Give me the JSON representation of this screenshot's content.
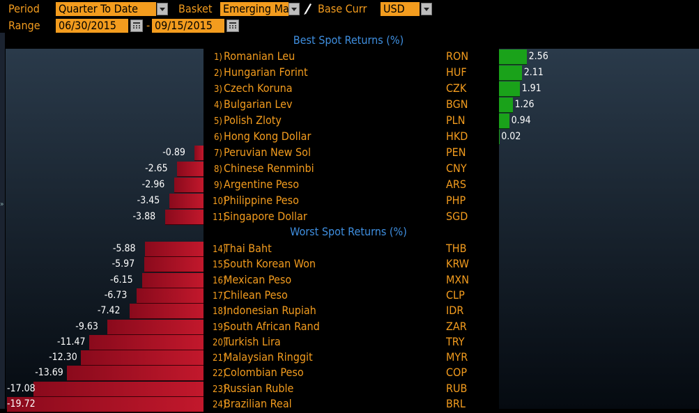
{
  "toolbar": {
    "period_label": "Period",
    "period_value": "Quarter To Date",
    "basket_label": "Basket",
    "basket_value": "Emerging Ma",
    "base_label": "Base Curr",
    "base_value": "USD",
    "range_label": "Range",
    "range_start": "06/30/2015",
    "range_sep": "-",
    "range_end": "09/15/2015"
  },
  "chart_data": {
    "type": "bar",
    "best_title": "Best Spot Returns (%)",
    "worst_title": "Worst Spot Returns (%)",
    "best": [
      {
        "rank": "1)",
        "name": "Romanian Leu",
        "code": "RON",
        "value": 2.56
      },
      {
        "rank": "2)",
        "name": "Hungarian Forint",
        "code": "HUF",
        "value": 2.11
      },
      {
        "rank": "3)",
        "name": "Czech Koruna",
        "code": "CZK",
        "value": 1.91
      },
      {
        "rank": "4)",
        "name": "Bulgarian Lev",
        "code": "BGN",
        "value": 1.26
      },
      {
        "rank": "5)",
        "name": "Polish Zloty",
        "code": "PLN",
        "value": 0.94
      },
      {
        "rank": "6)",
        "name": "Hong Kong Dollar",
        "code": "HKD",
        "value": 0.02
      },
      {
        "rank": "7)",
        "name": "Peruvian New Sol",
        "code": "PEN",
        "value": -0.89
      },
      {
        "rank": "8)",
        "name": "Chinese Renminbi",
        "code": "CNY",
        "value": -2.65
      },
      {
        "rank": "9)",
        "name": "Argentine Peso",
        "code": "ARS",
        "value": -2.96
      },
      {
        "rank": "10)",
        "name": "Philippine Peso",
        "code": "PHP",
        "value": -3.45
      },
      {
        "rank": "11)",
        "name": "Singapore Dollar",
        "code": "SGD",
        "value": -3.88
      }
    ],
    "worst": [
      {
        "rank": "14)",
        "name": "Thai Baht",
        "code": "THB",
        "value": -5.88
      },
      {
        "rank": "15)",
        "name": "South Korean Won",
        "code": "KRW",
        "value": -5.97
      },
      {
        "rank": "16)",
        "name": "Mexican Peso",
        "code": "MXN",
        "value": -6.15
      },
      {
        "rank": "17)",
        "name": "Chilean Peso",
        "code": "CLP",
        "value": -6.73
      },
      {
        "rank": "18)",
        "name": "Indonesian Rupiah",
        "code": "IDR",
        "value": -7.42
      },
      {
        "rank": "19)",
        "name": "South African Rand",
        "code": "ZAR",
        "value": -9.63
      },
      {
        "rank": "20)",
        "name": "Turkish Lira",
        "code": "TRY",
        "value": -11.47
      },
      {
        "rank": "21)",
        "name": "Malaysian Ringgit",
        "code": "MYR",
        "value": -12.3
      },
      {
        "rank": "22)",
        "name": "Colombian Peso",
        "code": "COP",
        "value": -13.69
      },
      {
        "rank": "23)",
        "name": "Russian Ruble",
        "code": "RUB",
        "value": -17.08
      },
      {
        "rank": "24)",
        "name": "Brazilian Real",
        "code": "BRL",
        "value": -19.72
      }
    ],
    "colors": {
      "positive": "#1aa21a",
      "negative": "#c2182c",
      "label": "#f39c1e",
      "title": "#3f8fe0"
    }
  }
}
